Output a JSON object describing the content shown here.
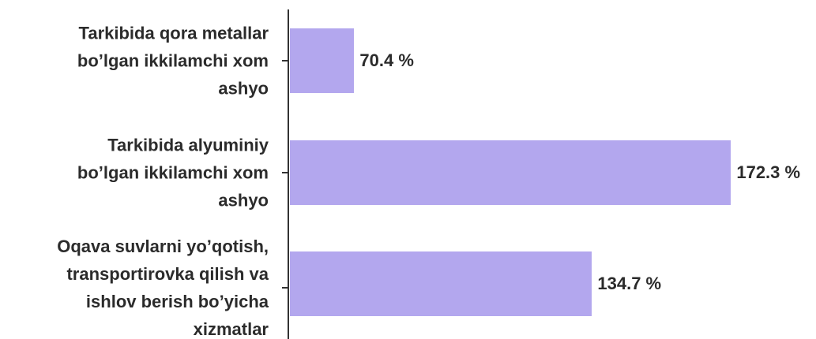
{
  "chart_data": {
    "type": "bar",
    "orientation": "horizontal",
    "categories": [
      "Tarkibida qora metallar\nbo’lgan ikkilamchi xom\nashyo",
      "Tarkibida alyuminiy\nbo’lgan ikkilamchi xom\nashyo",
      "Oqava suvlarni yo’qotish,\ntransportirovka qilish va\nishlov berish bo’yicha\nxizmatlar"
    ],
    "values": [
      70.4,
      172.3,
      134.7
    ],
    "value_labels": [
      "70.4 %",
      "172.3 %",
      "134.7 %"
    ],
    "color": "#b3a7ee",
    "xlim": [
      53,
      200
    ]
  }
}
